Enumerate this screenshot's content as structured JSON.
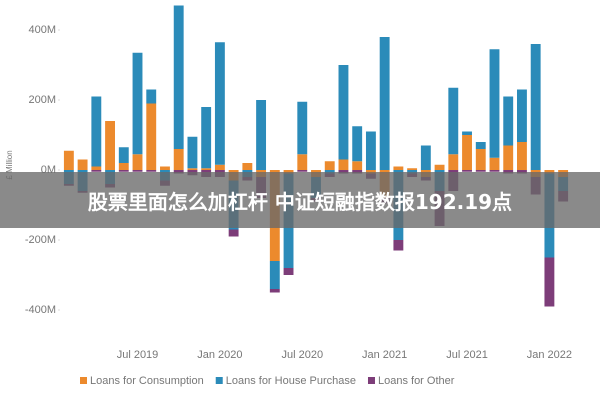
{
  "chart_data": {
    "type": "stacked_bar",
    "y_label": "£ Million",
    "categories": [
      null,
      null,
      null,
      null,
      null,
      "Jul 2019",
      null,
      null,
      null,
      null,
      null,
      "Jan 2020",
      null,
      null,
      null,
      null,
      null,
      "Jul 2020",
      null,
      null,
      null,
      null,
      null,
      "Jan 2021",
      null,
      null,
      null,
      null,
      null,
      "Jul 2021",
      null,
      null,
      null,
      null,
      null,
      "Jan 2022",
      null
    ],
    "series": [
      {
        "name": "Loans for Consumption",
        "color": "#ec8a2d",
        "values": [
          55,
          30,
          10,
          140,
          20,
          45,
          190,
          10,
          60,
          5,
          5,
          15,
          -30,
          20,
          -20,
          -260,
          -10,
          45,
          -20,
          25,
          30,
          25,
          -10,
          -80,
          10,
          5,
          -20,
          15,
          45,
          100,
          60,
          35,
          70,
          80,
          -20,
          -10,
          -20
        ]
      },
      {
        "name": "Loans for House Purchase",
        "color": "#2b8bb9",
        "values": [
          -40,
          -60,
          200,
          -40,
          45,
          290,
          40,
          -30,
          410,
          90,
          175,
          350,
          -140,
          -20,
          200,
          -80,
          -270,
          150,
          -60,
          -10,
          270,
          100,
          110,
          380,
          -200,
          -10,
          70,
          -60,
          190,
          10,
          20,
          310,
          140,
          150,
          360,
          -240,
          -40
        ]
      },
      {
        "name": "Loans for Other",
        "color": "#7d3d79",
        "values": [
          -5,
          -5,
          -5,
          -10,
          -5,
          -5,
          -5,
          -15,
          -10,
          -15,
          -20,
          -20,
          -20,
          -10,
          -60,
          -10,
          -20,
          -5,
          -10,
          -10,
          -10,
          -10,
          -15,
          -15,
          -30,
          -10,
          -10,
          -100,
          -60,
          -5,
          -5,
          -5,
          -10,
          -10,
          -50,
          -140,
          -30
        ]
      }
    ],
    "ylim": [
      -440,
      470
    ],
    "yticks": [
      {
        "value": -400,
        "label": "-400M"
      },
      {
        "value": -200,
        "label": "-200M"
      },
      {
        "value": 0,
        "label": "0M"
      },
      {
        "value": 200,
        "label": "200M"
      },
      {
        "value": 400,
        "label": "400M"
      }
    ]
  },
  "overlay_text": "股票里面怎么加杠杆 中证短融指数报192.19点"
}
